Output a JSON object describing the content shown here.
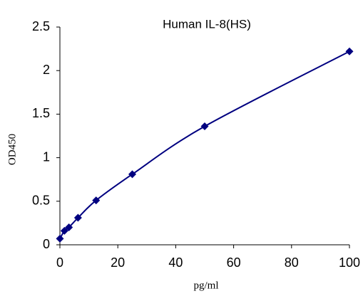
{
  "chart_data": {
    "type": "scatter-line",
    "title": "Human IL-8(HS)",
    "x_label": "pg/ml",
    "y_label": "OD450",
    "x": [
      0,
      1.56,
      3.12,
      6.25,
      12.5,
      25,
      50,
      100
    ],
    "series": [
      {
        "color": "#000080",
        "values": [
          0.07,
          0.16,
          0.2,
          0.31,
          0.51,
          0.81,
          1.36,
          2.22
        ]
      }
    ],
    "xlim": [
      0,
      100
    ],
    "xticks": [
      0,
      20,
      40,
      60,
      80,
      100
    ],
    "ylim": [
      0,
      2.5
    ],
    "yticks": [
      0,
      0.5,
      1,
      1.5,
      2,
      2.5
    ],
    "grid": false,
    "smooth": true
  }
}
